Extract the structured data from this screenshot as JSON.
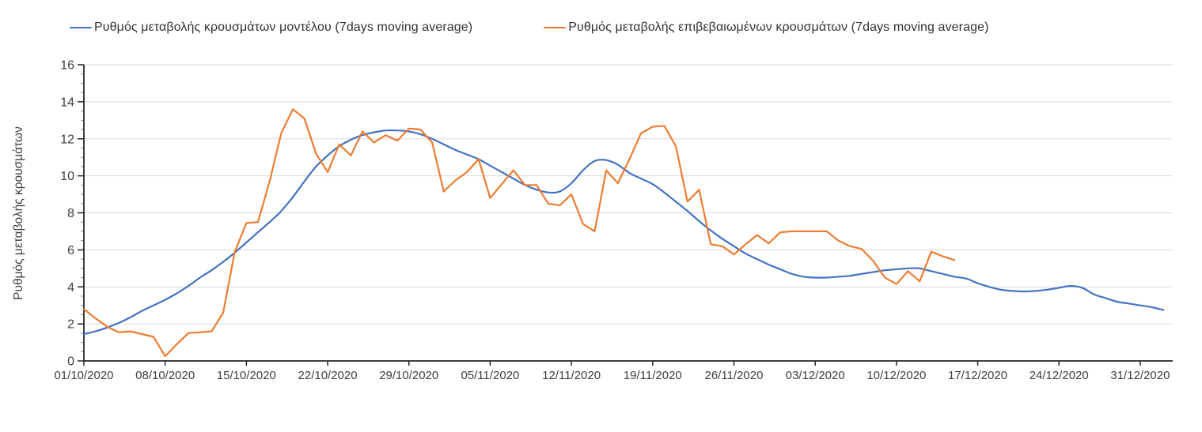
{
  "legend": {
    "items": [
      {
        "label": "Ρυθμός μεταβολής κρουσμάτων μοντέλου (7days moving average)",
        "color": "#4472C4"
      },
      {
        "label": "Ρυθμός μεταβολής επιβεβαιωμένων κρουσμάτων (7days moving average)",
        "color": "#ED7D31"
      }
    ]
  },
  "colors": {
    "model_line": "#4472C4",
    "confirmed_line": "#ED7D31",
    "grid": "#DADADA",
    "axis": "#262626",
    "minor_tick": "#8C8C8C",
    "text": "#3f3f3f",
    "background": "#FFFFFF"
  },
  "chart_data": {
    "type": "line",
    "title": "",
    "xlabel": "",
    "ylabel": "Ρυθμός μεταβολής κρουσμάτων",
    "ylim": [
      0,
      16
    ],
    "y_axis": {
      "major_step": 2,
      "minor_step": 0.5,
      "tick_labels": [
        "0",
        "2",
        "4",
        "6",
        "8",
        "10",
        "12",
        "14",
        "16"
      ]
    },
    "x_axis": {
      "start_date": "01/10/2020",
      "unit": "day",
      "max_day": 93.8,
      "tick_days": [
        0,
        7,
        14,
        21,
        28,
        35,
        42,
        49,
        56,
        63,
        70,
        77,
        84,
        91
      ],
      "tick_labels": [
        "01/10/2020",
        "08/10/2020",
        "15/10/2020",
        "22/10/2020",
        "29/10/2020",
        "05/11/2020",
        "12/11/2020",
        "19/11/2020",
        "26/11/2020",
        "03/12/2020",
        "10/12/2020",
        "17/12/2020",
        "24/12/2020",
        "31/12/2020"
      ]
    },
    "grid": true,
    "legend_position": "top",
    "series": [
      {
        "name": "Ρυθμός μεταβολής κρουσμάτων μοντέλου (7days moving average)",
        "color": "#4472C4",
        "smooth": true,
        "start_day": 0,
        "values": [
          1.45,
          1.6,
          1.8,
          2.05,
          2.35,
          2.7,
          3.0,
          3.3,
          3.65,
          4.05,
          4.5,
          4.9,
          5.35,
          5.85,
          6.4,
          6.95,
          7.5,
          8.1,
          8.85,
          9.7,
          10.5,
          11.1,
          11.6,
          11.95,
          12.2,
          12.35,
          12.45,
          12.45,
          12.4,
          12.25,
          12.0,
          11.7,
          11.4,
          11.15,
          10.9,
          10.55,
          10.2,
          9.85,
          9.5,
          9.25,
          9.1,
          9.15,
          9.6,
          10.3,
          10.8,
          10.85,
          10.6,
          10.15,
          9.85,
          9.55,
          9.1,
          8.6,
          8.1,
          7.55,
          7.05,
          6.6,
          6.2,
          5.8,
          5.5,
          5.2,
          4.95,
          4.7,
          4.55,
          4.5,
          4.5,
          4.55,
          4.6,
          4.7,
          4.8,
          4.9,
          4.95,
          5.0,
          5.0,
          4.85,
          4.7,
          4.55,
          4.45,
          4.2,
          4.0,
          3.85,
          3.78,
          3.75,
          3.78,
          3.85,
          3.95,
          4.05,
          3.95,
          3.6,
          3.4,
          3.2,
          3.1,
          3.0,
          2.9,
          2.75
        ]
      },
      {
        "name": "Ρυθμός μεταβολής επιβεβαιωμένων κρουσμάτων (7days moving average)",
        "color": "#ED7D31",
        "smooth": false,
        "start_day": 0,
        "values": [
          2.8,
          2.3,
          1.85,
          1.55,
          1.6,
          1.45,
          1.3,
          0.25,
          0.9,
          1.5,
          1.55,
          1.6,
          2.6,
          5.9,
          7.45,
          7.5,
          9.7,
          12.3,
          13.6,
          13.1,
          11.2,
          10.2,
          11.7,
          11.1,
          12.4,
          11.8,
          12.2,
          11.9,
          12.55,
          12.5,
          11.8,
          9.15,
          9.75,
          10.2,
          10.9,
          8.8,
          9.55,
          10.3,
          9.5,
          9.5,
          8.5,
          8.4,
          9.0,
          7.4,
          7.0,
          10.3,
          9.6,
          10.9,
          12.3,
          12.65,
          12.7,
          11.6,
          8.6,
          9.25,
          6.3,
          6.2,
          5.75,
          6.3,
          6.8,
          6.35,
          6.95,
          7.0,
          7.0,
          7.0,
          7.0,
          6.5,
          6.2,
          6.05,
          5.4,
          4.5,
          4.15,
          4.85,
          4.3,
          5.9,
          5.65,
          5.45
        ]
      }
    ]
  }
}
